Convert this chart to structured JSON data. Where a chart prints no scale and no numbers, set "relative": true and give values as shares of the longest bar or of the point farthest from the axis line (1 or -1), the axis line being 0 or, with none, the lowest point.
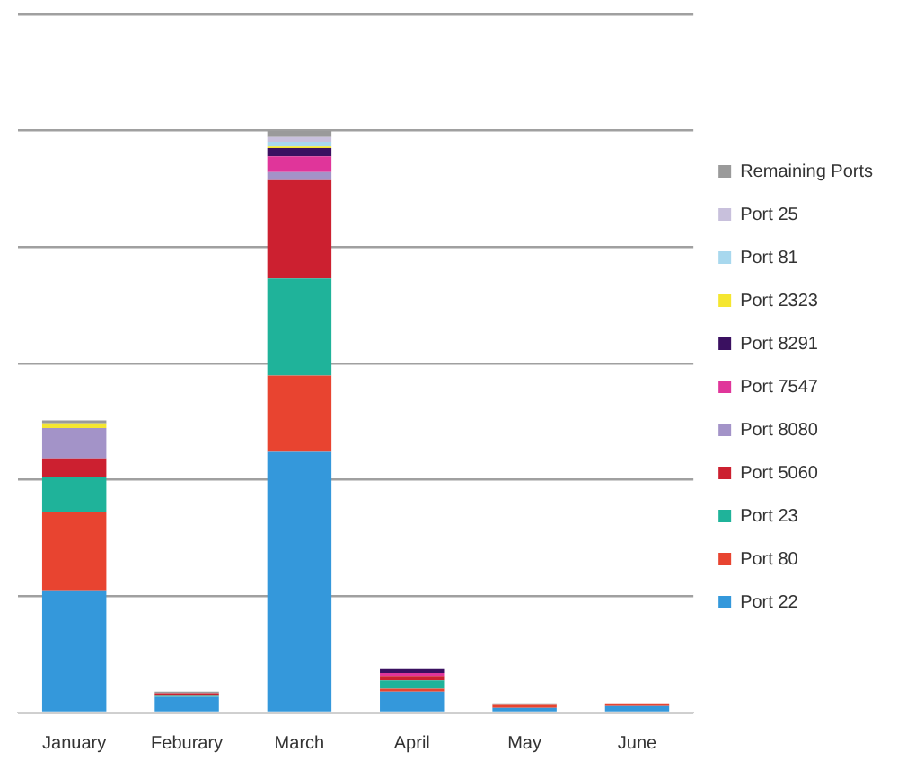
{
  "chart_data": {
    "type": "bar",
    "stacked": true,
    "relative": true,
    "grid": "y",
    "legend": "right",
    "categories": [
      "January",
      "Feburary",
      "March",
      "April",
      "May",
      "June"
    ],
    "series": [
      {
        "name": "Port 22",
        "color": "#3498db",
        "values": [
          0.21,
          0.027,
          0.448,
          0.036,
          0.008,
          0.011
        ]
      },
      {
        "name": "Port 80",
        "color": "#e84430",
        "values": [
          0.134,
          0,
          0.131,
          0.005,
          0.005,
          0.005
        ]
      },
      {
        "name": "Port 23",
        "color": "#1fb39a",
        "values": [
          0.06,
          0.003,
          0.167,
          0.014,
          0,
          0
        ]
      },
      {
        "name": "Port 5060",
        "color": "#cc2030",
        "values": [
          0.033,
          0.003,
          0.169,
          0.008,
          0,
          0
        ]
      },
      {
        "name": "Port 8080",
        "color": "#a393c8",
        "values": [
          0.052,
          0,
          0.014,
          0,
          0,
          0
        ]
      },
      {
        "name": "Port 7547",
        "color": "#e0359a",
        "values": [
          0,
          0,
          0.027,
          0.005,
          0,
          0
        ]
      },
      {
        "name": "Port 8291",
        "color": "#3a1060",
        "values": [
          0,
          0,
          0.014,
          0.008,
          0,
          0
        ]
      },
      {
        "name": "Port 2323",
        "color": "#f5e630",
        "values": [
          0.008,
          0,
          0.003,
          0,
          0,
          0
        ]
      },
      {
        "name": "Port 81",
        "color": "#a8d8ee",
        "values": [
          null,
          0,
          0.008,
          0,
          0,
          0
        ]
      },
      {
        "name": "Port 25",
        "color": "#c8c0dc",
        "values": [
          0,
          0,
          0.008,
          0,
          0,
          0
        ]
      },
      {
        "name": "Remaining Ports",
        "color": "#9a9a9a",
        "values": [
          0.005,
          0.003,
          0.011,
          0,
          0.003,
          0
        ]
      }
    ]
  }
}
